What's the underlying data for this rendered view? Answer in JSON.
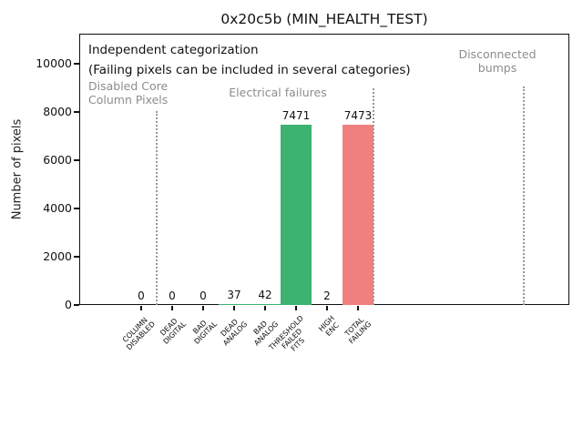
{
  "chart_data": {
    "type": "bar",
    "title": "0x20c5b (MIN_HEALTH_TEST)",
    "ylabel": "Number of pixels",
    "xlabel": "",
    "categories": [
      "COLUMN\nDISABLED",
      "DEAD\nDIGITAL",
      "BAD\nDIGITAL",
      "DEAD\nANALOG",
      "BAD\nANALOG",
      "THRESHOLD\nFAILED\nFITS",
      "HIGH\nENC",
      "TOTAL\nFAILING"
    ],
    "values": [
      0,
      0,
      0,
      37,
      42,
      7471,
      2,
      7473
    ],
    "bar_value_labels": [
      "0",
      "0",
      "0",
      "37",
      "42",
      "7471",
      "2",
      "7473"
    ],
    "bar_colors": [
      "#3cb371",
      "#3cb371",
      "#3cb371",
      "#3cb371",
      "#3cb371",
      "#3cb371",
      "#3cb371",
      "#f08080"
    ],
    "yticks": [
      0,
      2000,
      4000,
      6000,
      8000,
      10000
    ],
    "ylim": [
      0,
      11270
    ],
    "grid": false,
    "legend": "none",
    "annotations": {
      "independent_line1": "Independent categorization",
      "independent_line2": "(Failing pixels can be included in several categories)",
      "regions": [
        {
          "id": "disabled-core-column-pixels",
          "label": "Disabled Core\nColumn Pixels"
        },
        {
          "id": "electrical-failures",
          "label": "Electrical failures"
        },
        {
          "id": "disconnected-bumps",
          "label": "Disconnected\nbumps"
        }
      ]
    },
    "separators": {
      "style": "dotted",
      "color": "#999999",
      "x_between_categories": [
        0.5,
        7.5,
        12.35
      ]
    }
  }
}
